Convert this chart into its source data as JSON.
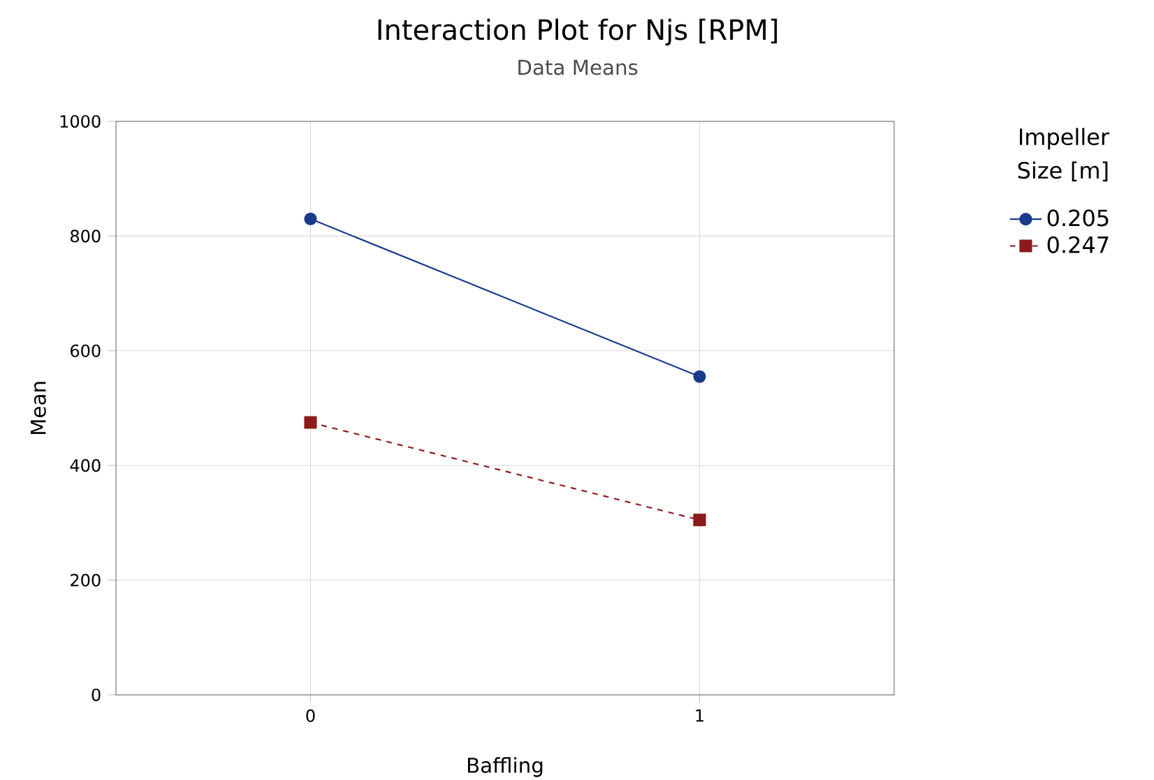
{
  "chart_data": {
    "type": "line",
    "title": "Interaction Plot for Njs [RPM]",
    "subtitle": "Data Means",
    "xlabel": "Baffling",
    "ylabel": "Mean",
    "legend_title": "Impeller Size [m]",
    "x": [
      0,
      1
    ],
    "xlim": [
      -0.5,
      1.5
    ],
    "xticks": [
      0,
      1
    ],
    "ylim": [
      0,
      1000
    ],
    "yticks": [
      0,
      200,
      400,
      600,
      800,
      1000
    ],
    "grid": true,
    "legend": "right",
    "series": [
      {
        "name": "0.205",
        "color": "#1a3a8c",
        "values": [
          830,
          555
        ],
        "marker": "circle",
        "line_style": "solid"
      },
      {
        "name": "0.247",
        "color": "#8b1a1a",
        "values": [
          475,
          305
        ],
        "marker": "square",
        "line_style": "dashed"
      }
    ]
  }
}
